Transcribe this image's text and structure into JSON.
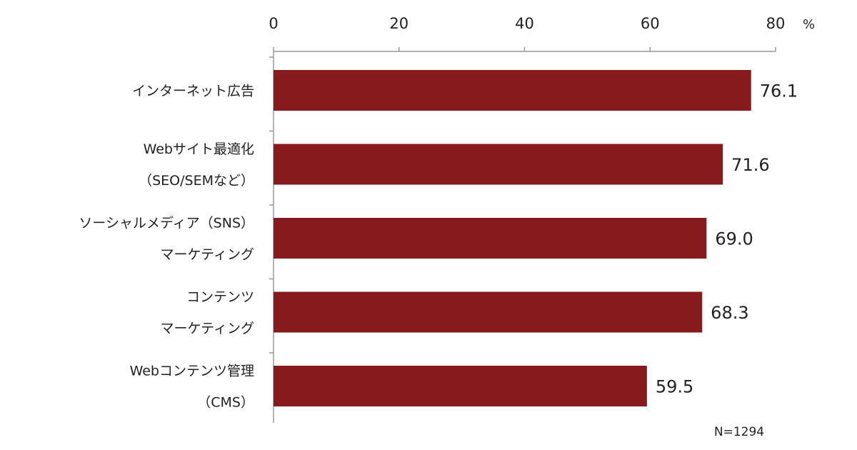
{
  "chart_data": {
    "type": "bar",
    "orientation": "horizontal",
    "categories": [
      [
        "インターネット広告"
      ],
      [
        "Webサイト最適化",
        "（SEO/SEMなど）"
      ],
      [
        "ソーシャルメディア（SNS）",
        "マーケティング"
      ],
      [
        "コンテンツ",
        "マーケティング"
      ],
      [
        "Webコンテンツ管理",
        "（CMS）"
      ]
    ],
    "values": [
      76.1,
      71.6,
      69.0,
      68.3,
      59.5
    ],
    "value_labels": [
      "76.1",
      "71.6",
      "69.0",
      "68.3",
      "59.5"
    ],
    "xlim": [
      0,
      80
    ],
    "ticks": [
      "0",
      "20",
      "40",
      "60",
      "80"
    ],
    "tick_values": [
      0,
      20,
      40,
      60,
      80
    ],
    "unit": "%",
    "axis_position": "top",
    "grid": false,
    "note": "N=1294",
    "bar_color": "#861a1c"
  }
}
